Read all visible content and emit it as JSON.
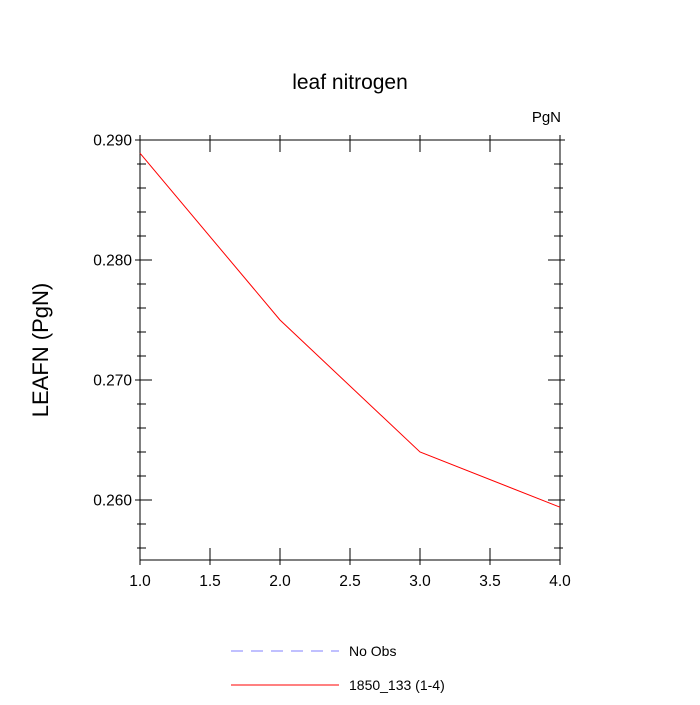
{
  "chart_data": {
    "type": "line",
    "title": "leaf nitrogen",
    "units": "PgN",
    "xlabel": "",
    "ylabel": "LEAFN  (PgN)",
    "xlim": [
      1.0,
      4.0
    ],
    "ylim": [
      0.255,
      0.29
    ],
    "x_ticks": [
      1.0,
      1.5,
      2.0,
      2.5,
      3.0,
      3.5,
      4.0
    ],
    "x_tick_labels": [
      "1.0",
      "1.5",
      "2.0",
      "2.5",
      "3.0",
      "3.5",
      "4.0"
    ],
    "y_ticks": [
      0.26,
      0.27,
      0.28,
      0.29
    ],
    "y_tick_labels": [
      "0.260",
      "0.270",
      "0.280",
      "0.290"
    ],
    "y_minor_step": 0.002,
    "x_minor_step": 0.5,
    "grid": false,
    "legend_position": "bottom",
    "series": [
      {
        "name": "No Obs",
        "color": "#8080ff",
        "dash": true,
        "x": [],
        "y": []
      },
      {
        "name": "1850_133 (1-4)",
        "color": "#ff0000",
        "dash": false,
        "x": [
          1.0,
          2.0,
          3.0,
          4.0
        ],
        "y": [
          0.2889,
          0.275,
          0.264,
          0.2594
        ]
      }
    ]
  }
}
